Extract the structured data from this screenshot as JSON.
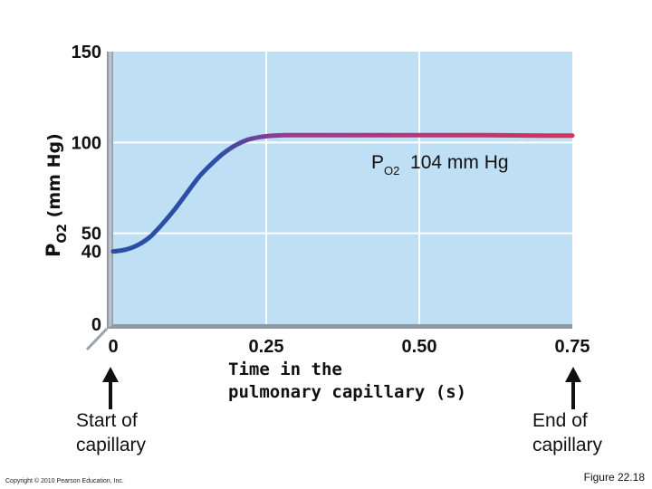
{
  "chart_data": {
    "type": "line",
    "ylabel_main": "P",
    "ylabel_sub": "O2",
    "ylabel_unit": "(mm Hg)",
    "xlabel_line1": "Time in the",
    "xlabel_line2": "pulmonary capillary (s)",
    "xlim": [
      0,
      0.75
    ],
    "ylim": [
      0,
      150
    ],
    "x_ticks": [
      {
        "v": 0,
        "label": "0"
      },
      {
        "v": 0.25,
        "label": "0.25"
      },
      {
        "v": 0.5,
        "label": "0.50"
      },
      {
        "v": 0.75,
        "label": "0.75"
      }
    ],
    "y_ticks": [
      {
        "v": 0,
        "label": "0"
      },
      {
        "v": 40,
        "label": "40"
      },
      {
        "v": 50,
        "label": "50"
      },
      {
        "v": 100,
        "label": "100"
      },
      {
        "v": 150,
        "label": "150"
      }
    ],
    "grid": true,
    "series": [
      {
        "x": [
          0,
          0.02,
          0.04,
          0.06,
          0.08,
          0.1,
          0.12,
          0.14,
          0.16,
          0.18,
          0.2,
          0.22,
          0.24,
          0.26,
          0.28,
          0.3,
          0.4,
          0.5,
          0.6,
          0.7,
          0.75
        ],
        "y": [
          40,
          41,
          43.5,
          48,
          55,
          63,
          72,
          81,
          88,
          94,
          98.5,
          101.5,
          103,
          103.7,
          104,
          104,
          104,
          104,
          104,
          103.8,
          103.8
        ],
        "color_start": "#2b4fa6",
        "color_mid": "#a3378f",
        "color_end": "#dc2f5a"
      }
    ],
    "annotation": {
      "main": "P",
      "sub": "O2",
      "value": "104 mm Hg",
      "x": 0.45,
      "y": 104
    }
  },
  "notes": {
    "start_line1": "Start of",
    "start_line2": "capillary",
    "end_line1": "End of",
    "end_line2": "capillary"
  },
  "footer": {
    "copyright": "Copyright © 2010 Pearson Education, Inc.",
    "figure": "Figure 22.18"
  },
  "colors": {
    "plot_bg": "#bfdff5",
    "axis": "#9aa3ad",
    "grid": "#ffffff"
  }
}
